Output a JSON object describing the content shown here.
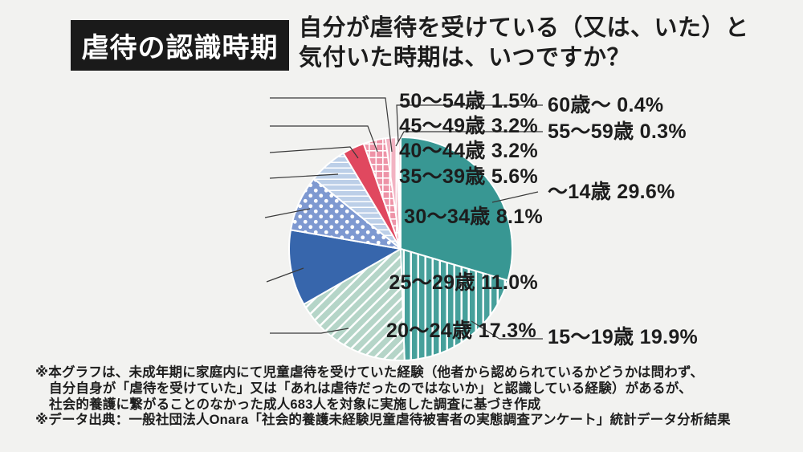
{
  "header": {
    "title_badge": "虐待の認識時期",
    "question_line1": "自分が虐待を受けている（又は、いた）と",
    "question_line2": "気付いた時期は、いつですか？"
  },
  "chart_data": {
    "type": "pie",
    "title": "虐待の認識時期",
    "question": "自分が虐待を受けている（又は、いた）と気付いた時期は、いつですか？",
    "unit": "%",
    "order": "clockwise from 12 o'clock",
    "legend": "none (leader-line labels)",
    "slices": [
      {
        "label": "～14歳",
        "value": 29.6,
        "display": "～14歳 29.6%",
        "color": "#389793",
        "pattern": "solid"
      },
      {
        "label": "15～19歳",
        "value": 19.9,
        "display": "15～19歳 19.9%",
        "color": "#46a09b",
        "pattern": "vertical-stripes"
      },
      {
        "label": "20～24歳",
        "value": 17.3,
        "display": "20～24歳 17.3%",
        "color": "#b5d5c8",
        "pattern": "diagonal-stripes"
      },
      {
        "label": "25～29歳",
        "value": 11.0,
        "display": "25～29歳 11.0%",
        "color": "#3766ac",
        "pattern": "solid"
      },
      {
        "label": "30～34歳",
        "value": 8.1,
        "display": "30～34歳 8.1%",
        "color": "#7e99d1",
        "pattern": "polka-dots"
      },
      {
        "label": "35～39歳",
        "value": 5.6,
        "display": "35～39歳 5.6%",
        "color": "#bccfe8",
        "pattern": "horizontal-stripes"
      },
      {
        "label": "40～44歳",
        "value": 3.2,
        "display": "40～44歳 3.2%",
        "color": "#e0485f",
        "pattern": "solid"
      },
      {
        "label": "45～49歳",
        "value": 3.2,
        "display": "45～49歳 3.2%",
        "color": "#ee93a7",
        "pattern": "grid"
      },
      {
        "label": "50～54歳",
        "value": 1.5,
        "display": "50～54歳 1.5%",
        "color": "#f2b3c2",
        "pattern": "vertical-stripes"
      },
      {
        "label": "55～59歳",
        "value": 0.3,
        "display": "55～59歳 0.3%",
        "color": "#f6cdd6",
        "pattern": "solid"
      },
      {
        "label": "60歳～",
        "value": 0.4,
        "display": "60歳～ 0.4%",
        "color": "#fbe2e6",
        "pattern": "solid"
      }
    ]
  },
  "footnotes": [
    "※本グラフは、未成年期に家庭内にて児童虐待を受けていた経験（他者から認められているかどうかは問わず、",
    "自分自身が「虐待を受けていた」又は「あれは虐待だったのではないか」と認識している経験）があるが、",
    "社会的養護に繋がることのなかった成人683人を対象に実施した調査に基づき作成",
    "※データ出典：一般社団法人Onara「社会的養護未経験児童虐待被害者の実態調査アンケート」統計データ分析結果"
  ],
  "colors": {
    "background": "#f2f2f0",
    "text": "#1d1d1d",
    "badge_background": "#1a1a1a",
    "badge_text": "#ffffff",
    "leader_line": "#3a3a3a",
    "slice_separator": "#ffffff"
  }
}
